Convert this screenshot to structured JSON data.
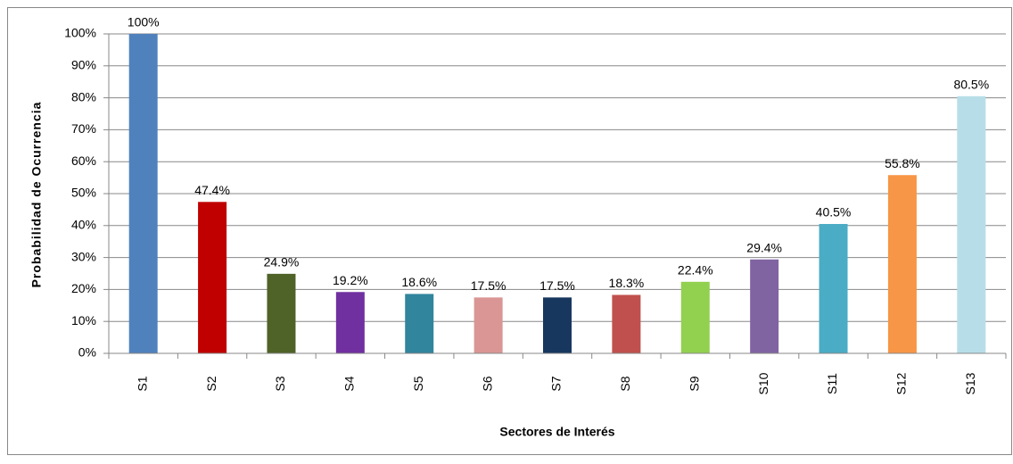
{
  "chart_data": {
    "type": "bar",
    "x_label": "Sectores de Interés",
    "y_label": "Probabilidad de Ocurrencia",
    "categories": [
      "S1",
      "S2",
      "S3",
      "S4",
      "S5",
      "S6",
      "S7",
      "S8",
      "S9",
      "S10",
      "S11",
      "S12",
      "S13"
    ],
    "values": [
      100,
      47.4,
      24.9,
      19.2,
      18.6,
      17.5,
      17.5,
      18.3,
      22.4,
      29.4,
      40.5,
      55.8,
      80.5
    ],
    "value_labels": [
      "100%",
      "47.4%",
      "24.9%",
      "19.2%",
      "18.6%",
      "17.5%",
      "17.5%",
      "18.3%",
      "22.4%",
      "29.4%",
      "40.5%",
      "55.8%",
      "80.5%"
    ],
    "colors": [
      "#4f81bd",
      "#c00000",
      "#4f6228",
      "#7030a0",
      "#31859c",
      "#d99694",
      "#17375e",
      "#c0504d",
      "#92d050",
      "#8064a2",
      "#4bacc6",
      "#f79646",
      "#b7dee8"
    ],
    "ylim": [
      0,
      100
    ],
    "yticks": [
      {
        "value": 0,
        "label": "0%"
      },
      {
        "value": 10,
        "label": "10%"
      },
      {
        "value": 20,
        "label": "20%"
      },
      {
        "value": 30,
        "label": "30%"
      },
      {
        "value": 40,
        "label": "40%"
      },
      {
        "value": 50,
        "label": "50%"
      },
      {
        "value": 60,
        "label": "60%"
      },
      {
        "value": 70,
        "label": "70%"
      },
      {
        "value": 80,
        "label": "80%"
      },
      {
        "value": 90,
        "label": "90%"
      },
      {
        "value": 100,
        "label": "100%"
      }
    ],
    "grid": true
  }
}
